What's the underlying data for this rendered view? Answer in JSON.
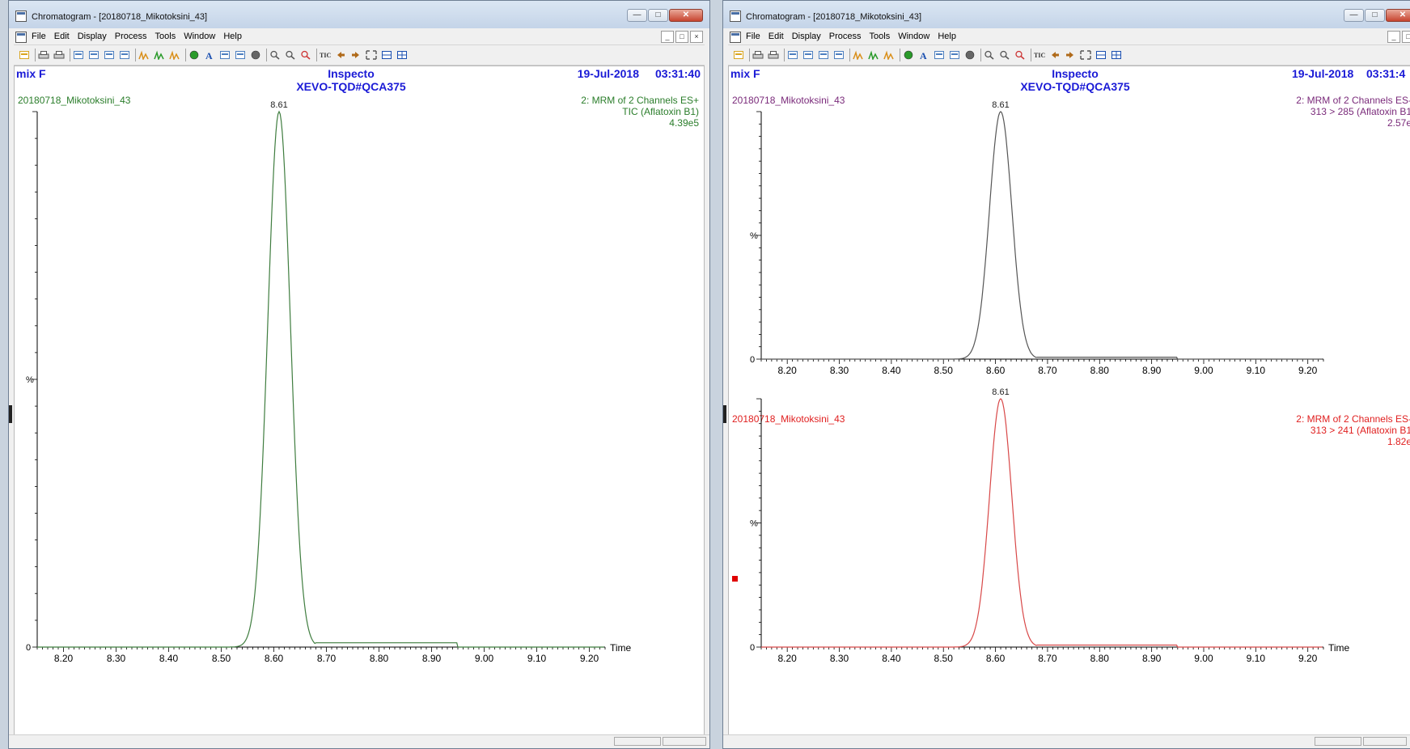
{
  "windows": [
    {
      "id": "left",
      "title": "Chromatogram - [20180718_Mikotoksini_43]",
      "menu": [
        "File",
        "Edit",
        "Display",
        "Process",
        "Tools",
        "Window",
        "Help"
      ],
      "header": {
        "left": "mix F",
        "center1": "Inspecto",
        "center2": "XEVO-TQD#QCA375",
        "date": "19-Jul-2018",
        "time": "03:31:40"
      },
      "traces": [
        {
          "sample": "20180718_Mikotoksini_43",
          "info1": "2: MRM of 2 Channels ES+",
          "info2": "TIC (Aflatoxin B1)",
          "info3": "4.39e5",
          "peak_label": "8.61",
          "color": "#3f7d3f",
          "y_label": "%",
          "zero_label": "0",
          "time_label": "Time"
        }
      ]
    },
    {
      "id": "right",
      "title": "Chromatogram - [20180718_Mikotoksini_43]",
      "menu": [
        "File",
        "Edit",
        "Display",
        "Process",
        "Tools",
        "Window",
        "Help"
      ],
      "header": {
        "left": "mix F",
        "center1": "Inspecto",
        "center2": "XEVO-TQD#QCA375",
        "date": "19-Jul-2018",
        "time": "03:31:4"
      },
      "traces": [
        {
          "sample": "20180718_Mikotoksini_43",
          "info1": "2: MRM of 2 Channels ES-",
          "info2": "313 > 285 (Aflatoxin B1",
          "info3": "2.57e",
          "peak_label": "8.61",
          "color": "#555555",
          "label_color": "#7a2a7a",
          "y_label": "%",
          "zero_label": "0"
        },
        {
          "sample": "20180718_Mikotoksini_43",
          "info1": "2: MRM of 2 Channels ES-",
          "info2": "313 > 241 (Aflatoxin B1",
          "info3": "1.82e",
          "peak_label": "8.61",
          "color": "#d84848",
          "label_color": "#e02020",
          "y_label": "%",
          "zero_label": "0",
          "time_label": "Time"
        }
      ]
    }
  ],
  "chart_data": [
    {
      "type": "line",
      "title": "TIC (Aflatoxin B1)",
      "xlabel": "Time",
      "ylabel": "%",
      "xlim": [
        8.15,
        9.23
      ],
      "ylim": [
        0,
        100
      ],
      "x_ticks": [
        "8.20",
        "8.30",
        "8.40",
        "8.50",
        "8.60",
        "8.70",
        "8.80",
        "8.90",
        "9.00",
        "9.10",
        "9.20"
      ],
      "series": [
        {
          "name": "TIC (Aflatoxin B1)",
          "peak_rt": 8.61,
          "peak_value": 100,
          "x": [
            8.15,
            8.5,
            8.53,
            8.56,
            8.58,
            8.6,
            8.61,
            8.62,
            8.64,
            8.66,
            8.69,
            8.72,
            8.8,
            9.23
          ],
          "y": [
            0,
            0,
            3,
            22,
            60,
            96,
            100,
            96,
            60,
            22,
            3,
            1,
            0.5,
            0
          ]
        }
      ]
    },
    {
      "type": "line",
      "title": "313 > 285 (Aflatoxin B1",
      "xlabel": "",
      "ylabel": "%",
      "xlim": [
        8.15,
        9.23
      ],
      "ylim": [
        0,
        100
      ],
      "x_ticks": [
        "8.20",
        "8.30",
        "8.40",
        "8.50",
        "8.60",
        "8.70",
        "8.80",
        "8.90",
        "9.00",
        "9.10",
        "9.20"
      ],
      "series": [
        {
          "name": "313 > 285 (Aflatoxin B1",
          "peak_rt": 8.61,
          "peak_value": 100,
          "x": [
            8.15,
            8.5,
            8.53,
            8.56,
            8.58,
            8.6,
            8.61,
            8.62,
            8.64,
            8.66,
            8.69,
            8.72,
            8.8,
            9.23
          ],
          "y": [
            0,
            0,
            3,
            22,
            60,
            96,
            100,
            96,
            60,
            22,
            3,
            1,
            0.5,
            0
          ]
        }
      ]
    },
    {
      "type": "line",
      "title": "313 > 241 (Aflatoxin B1",
      "xlabel": "Time",
      "ylabel": "%",
      "xlim": [
        8.15,
        9.23
      ],
      "ylim": [
        0,
        100
      ],
      "x_ticks": [
        "8.20",
        "8.30",
        "8.40",
        "8.50",
        "8.60",
        "8.70",
        "8.80",
        "8.90",
        "9.00",
        "9.10",
        "9.20"
      ],
      "series": [
        {
          "name": "313 > 241 (Aflatoxin B1",
          "peak_rt": 8.61,
          "peak_value": 100,
          "x": [
            8.15,
            8.5,
            8.53,
            8.56,
            8.58,
            8.6,
            8.61,
            8.62,
            8.64,
            8.66,
            8.69,
            8.72,
            8.8,
            9.23
          ],
          "y": [
            0,
            0,
            3,
            22,
            60,
            96,
            100,
            96,
            60,
            22,
            3,
            1,
            0.5,
            0
          ]
        }
      ]
    }
  ]
}
